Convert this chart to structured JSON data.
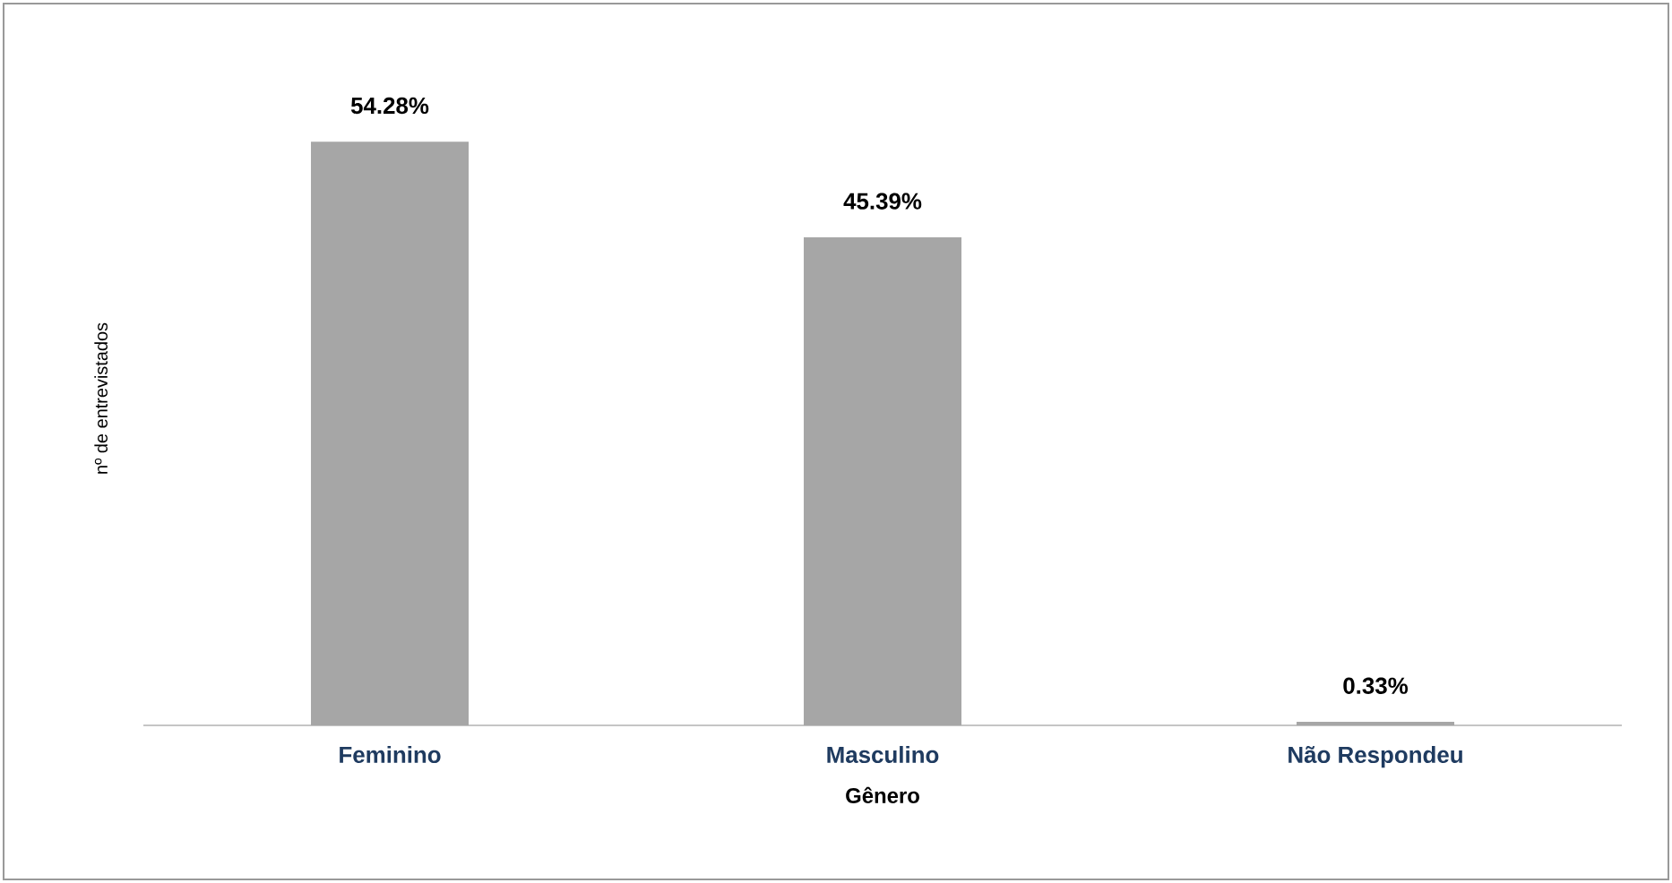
{
  "chart_data": {
    "type": "bar",
    "categories": [
      "Feminino",
      "Masculino",
      "Não Respondeu"
    ],
    "values": [
      54.28,
      45.39,
      0.33
    ],
    "value_labels": [
      "54.28%",
      "45.39%",
      "0.33%"
    ],
    "color": "#a6a6a6",
    "xlabel": "Gênero",
    "ylabel": "nº de entrevistados"
  }
}
